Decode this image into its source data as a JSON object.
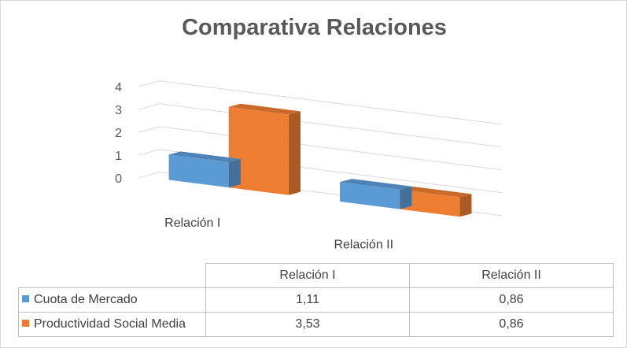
{
  "chart_data": {
    "type": "bar",
    "title": "Comparativa Relaciones",
    "categories": [
      "Relación I",
      "Relación II"
    ],
    "series": [
      {
        "name": "Cuota de Mercado",
        "values": [
          1.11,
          0.86
        ],
        "labels": [
          "1,11",
          "0,86"
        ],
        "color": "#5b9bd5"
      },
      {
        "name": "Productividad Social Media",
        "values": [
          3.53,
          0.86
        ],
        "labels": [
          "3,53",
          "0,86"
        ],
        "color": "#ed7d31"
      }
    ],
    "ylim": [
      0,
      4
    ],
    "yticks": [
      "0",
      "1",
      "2",
      "3",
      "4"
    ],
    "grid": true,
    "legend": "data-table"
  }
}
